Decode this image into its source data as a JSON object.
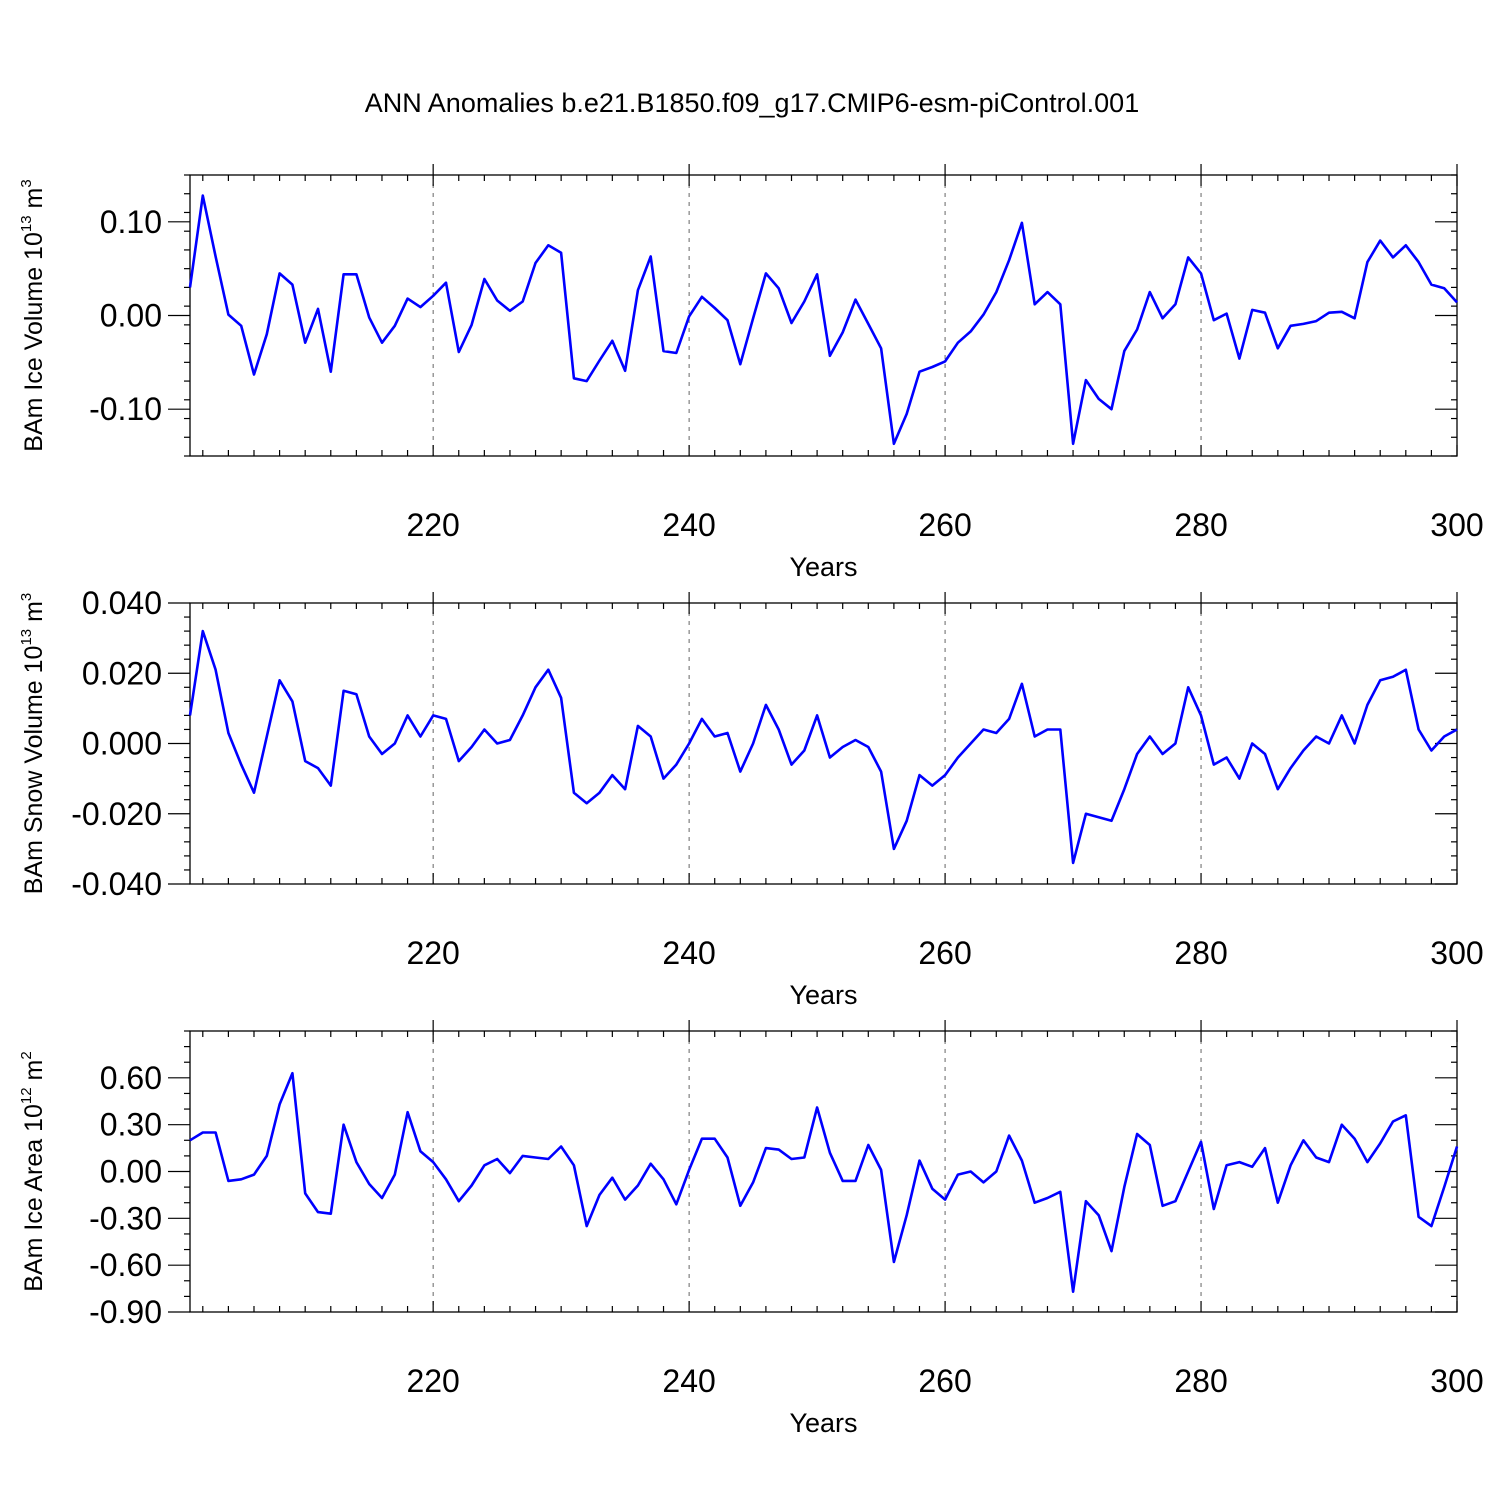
{
  "title": "ANN Anomalies b.e21.B1850.f09_g17.CMIP6-esm-piControl.001",
  "chart_data": [
    {
      "type": "line",
      "ylabel_main": "BAm Ice Volume 10",
      "ylabel_exp1": "13",
      "ylabel_mid": " m",
      "ylabel_exp2": "3",
      "xlabel": "Years",
      "xlim": [
        201,
        300
      ],
      "ylim": [
        -0.15,
        0.15
      ],
      "xticks": [
        220,
        240,
        260,
        280,
        300
      ],
      "xtick_labels": [
        "220",
        "240",
        "260",
        "280",
        "300"
      ],
      "yticks": [
        -0.1,
        0.0,
        0.1
      ],
      "ytick_labels": [
        "-0.10",
        "0.00",
        "0.10"
      ],
      "ytick_minor_step": 0.02,
      "grid_x": true,
      "color": "#0000ff",
      "x_start": 201,
      "values": [
        0.03,
        0.128,
        0.063,
        0.001,
        -0.011,
        -0.063,
        -0.02,
        0.045,
        0.033,
        -0.029,
        0.007,
        -0.06,
        0.044,
        0.044,
        -0.002,
        -0.029,
        -0.011,
        0.018,
        0.009,
        0.021,
        0.035,
        -0.039,
        -0.01,
        0.039,
        0.016,
        0.005,
        0.015,
        0.056,
        0.075,
        0.067,
        -0.067,
        -0.07,
        -0.048,
        -0.027,
        -0.059,
        0.027,
        0.063,
        -0.038,
        -0.04,
        -0.001,
        0.02,
        0.008,
        -0.005,
        -0.052,
        -0.003,
        0.045,
        0.029,
        -0.008,
        0.015,
        0.044,
        -0.043,
        -0.018,
        0.017,
        -0.009,
        -0.035,
        -0.137,
        -0.105,
        -0.06,
        -0.055,
        -0.049,
        -0.029,
        -0.017,
        0.001,
        0.025,
        0.059,
        0.099,
        0.012,
        0.025,
        0.012,
        -0.137,
        -0.069,
        -0.089,
        -0.1,
        -0.038,
        -0.015,
        0.025,
        -0.003,
        0.012,
        0.062,
        0.045,
        -0.005,
        0.002,
        -0.046,
        0.006,
        0.003,
        -0.035,
        -0.011,
        -0.009,
        -0.006,
        0.003,
        0.004,
        -0.003,
        0.057,
        0.08,
        0.062,
        0.075,
        0.057,
        0.033,
        0.029,
        0.014
      ]
    },
    {
      "type": "line",
      "ylabel_main": "BAm Snow Volume 10",
      "ylabel_exp1": "13",
      "ylabel_mid": " m",
      "ylabel_exp2": "3",
      "xlabel": "Years",
      "xlim": [
        201,
        300
      ],
      "ylim": [
        -0.04,
        0.04
      ],
      "xticks": [
        220,
        240,
        260,
        280,
        300
      ],
      "xtick_labels": [
        "220",
        "240",
        "260",
        "280",
        "300"
      ],
      "yticks": [
        -0.04,
        -0.02,
        0.0,
        0.02,
        0.04
      ],
      "ytick_labels": [
        "-0.040",
        "-0.020",
        "0.000",
        "0.020",
        "0.040"
      ],
      "ytick_minor_step": 0.004,
      "grid_x": true,
      "color": "#0000ff",
      "x_start": 201,
      "values": [
        0.008,
        0.032,
        0.021,
        0.003,
        -0.006,
        -0.014,
        0.002,
        0.018,
        0.012,
        -0.005,
        -0.007,
        -0.012,
        0.015,
        0.014,
        0.002,
        -0.003,
        0.0,
        0.008,
        0.002,
        0.008,
        0.007,
        -0.005,
        -0.001,
        0.004,
        0.0,
        0.001,
        0.008,
        0.016,
        0.021,
        0.013,
        -0.014,
        -0.017,
        -0.014,
        -0.009,
        -0.013,
        0.005,
        0.002,
        -0.01,
        -0.006,
        0.0,
        0.007,
        0.002,
        0.003,
        -0.008,
        0.0,
        0.011,
        0.004,
        -0.006,
        -0.002,
        0.008,
        -0.004,
        -0.001,
        0.001,
        -0.001,
        -0.008,
        -0.03,
        -0.022,
        -0.009,
        -0.012,
        -0.009,
        -0.004,
        0.0,
        0.004,
        0.003,
        0.007,
        0.017,
        0.002,
        0.004,
        0.004,
        -0.034,
        -0.02,
        -0.021,
        -0.022,
        -0.013,
        -0.003,
        0.002,
        -0.003,
        0.0,
        0.016,
        0.008,
        -0.006,
        -0.004,
        -0.01,
        0.0,
        -0.003,
        -0.013,
        -0.007,
        -0.002,
        0.002,
        0.0,
        0.008,
        0.0,
        0.011,
        0.018,
        0.019,
        0.021,
        0.004,
        -0.002,
        0.002,
        0.004
      ]
    },
    {
      "type": "line",
      "ylabel_main": "BAm Ice Area 10",
      "ylabel_exp1": "12",
      "ylabel_mid": " m",
      "ylabel_exp2": "2",
      "xlabel": "Years",
      "xlim": [
        201,
        300
      ],
      "ylim": [
        -0.9,
        0.9
      ],
      "xticks": [
        220,
        240,
        260,
        280,
        300
      ],
      "xtick_labels": [
        "220",
        "240",
        "260",
        "280",
        "300"
      ],
      "yticks": [
        -0.9,
        -0.6,
        -0.3,
        0.0,
        0.3,
        0.6
      ],
      "ytick_labels": [
        "-0.90",
        "-0.60",
        "-0.30",
        "0.00",
        "0.30",
        "0.60"
      ],
      "ytick_minor_step": 0.1,
      "grid_x": true,
      "color": "#0000ff",
      "x_start": 201,
      "values": [
        0.2,
        0.25,
        0.25,
        -0.06,
        -0.05,
        -0.02,
        0.1,
        0.43,
        0.63,
        -0.14,
        -0.26,
        -0.27,
        0.3,
        0.06,
        -0.08,
        -0.17,
        -0.02,
        0.38,
        0.13,
        0.06,
        -0.05,
        -0.19,
        -0.09,
        0.04,
        0.08,
        -0.01,
        0.1,
        0.09,
        0.08,
        0.16,
        0.04,
        -0.35,
        -0.15,
        -0.04,
        -0.18,
        -0.09,
        0.05,
        -0.05,
        -0.21,
        0.01,
        0.21,
        0.21,
        0.09,
        -0.22,
        -0.07,
        0.15,
        0.14,
        0.08,
        0.09,
        0.41,
        0.12,
        -0.06,
        -0.06,
        0.17,
        0.01,
        -0.58,
        -0.28,
        0.07,
        -0.11,
        -0.18,
        -0.02,
        0.0,
        -0.07,
        0.0,
        0.23,
        0.07,
        -0.2,
        -0.17,
        -0.13,
        -0.77,
        -0.19,
        -0.28,
        -0.51,
        -0.1,
        0.24,
        0.17,
        -0.22,
        -0.19,
        0.0,
        0.19,
        -0.24,
        0.04,
        0.06,
        0.03,
        0.15,
        -0.2,
        0.04,
        0.2,
        0.09,
        0.06,
        0.3,
        0.21,
        0.06,
        0.18,
        0.32,
        0.36,
        -0.29,
        -0.35,
        -0.1,
        0.16
      ]
    }
  ]
}
